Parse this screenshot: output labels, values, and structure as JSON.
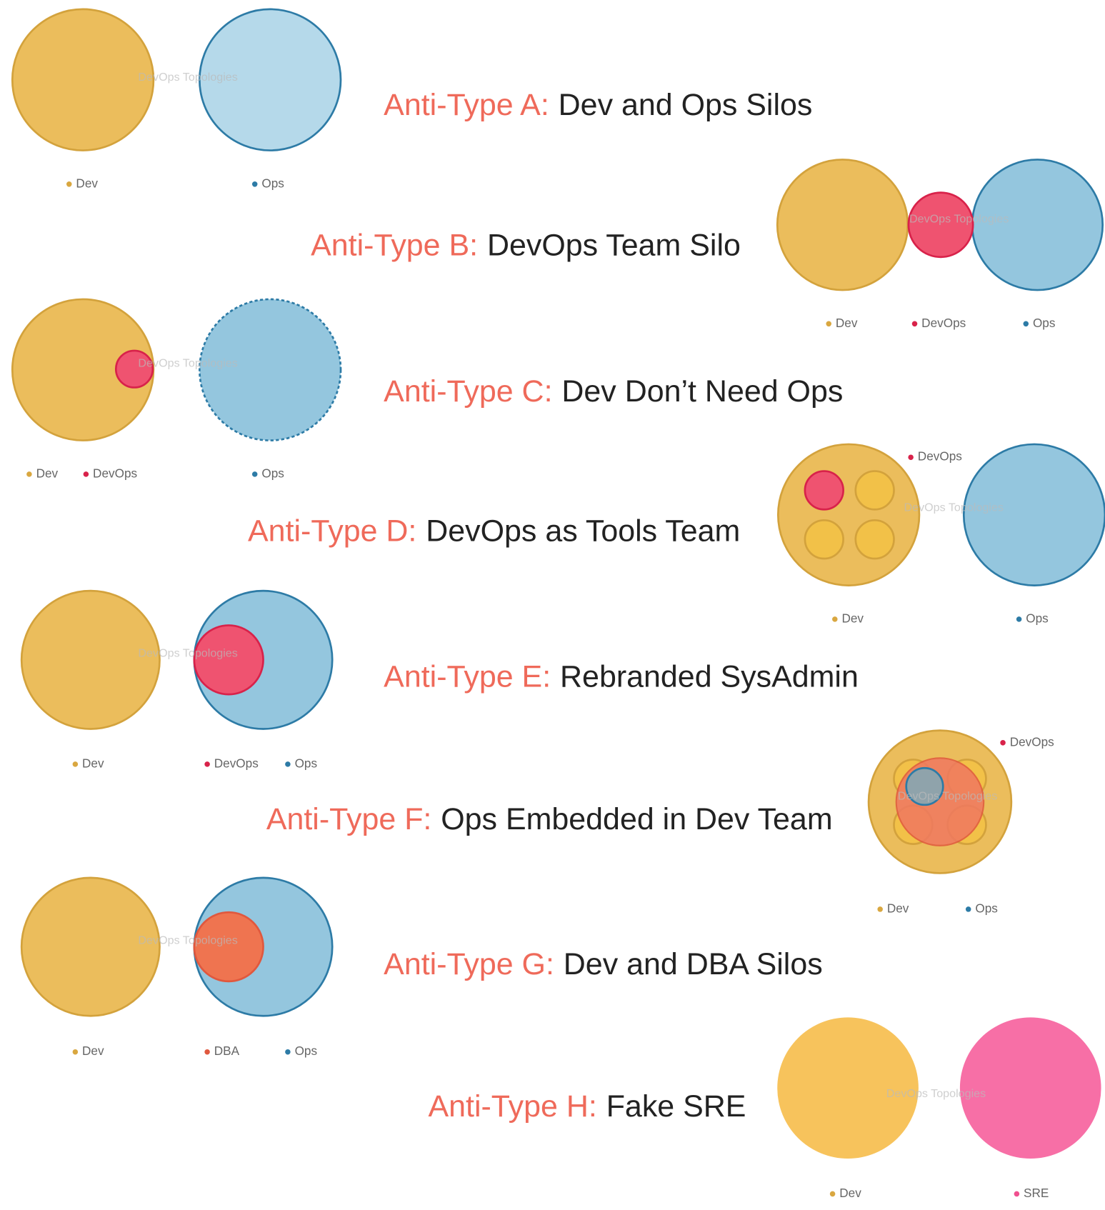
{
  "watermark": "DevOps Topologies",
  "rows": [
    {
      "label": "Anti-Type A:",
      "title": "Dev and Ops Silos",
      "legend": [
        "Dev",
        "Ops"
      ]
    },
    {
      "label": "Anti-Type B:",
      "title": "DevOps Team Silo",
      "legend": [
        "Dev",
        "DevOps",
        "Ops"
      ]
    },
    {
      "label": "Anti-Type C:",
      "title": "Dev Don’t Need Ops",
      "legend": [
        "Dev",
        "DevOps",
        "Ops"
      ]
    },
    {
      "label": "Anti-Type D:",
      "title": "DevOps as Tools Team",
      "legend": [
        "DevOps",
        "Dev",
        "Ops"
      ]
    },
    {
      "label": "Anti-Type E:",
      "title": "Rebranded SysAdmin",
      "legend": [
        "Dev",
        "DevOps",
        "Ops"
      ]
    },
    {
      "label": "Anti-Type F:",
      "title": "Ops Embedded in Dev Team",
      "legend": [
        "DevOps",
        "Dev",
        "Ops"
      ]
    },
    {
      "label": "Anti-Type G:",
      "title": "Dev and DBA Silos",
      "legend": [
        "Dev",
        "DBA",
        "Ops"
      ]
    },
    {
      "label": "Anti-Type H:",
      "title": "Fake SRE",
      "legend": [
        "Dev",
        "SRE"
      ]
    }
  ]
}
